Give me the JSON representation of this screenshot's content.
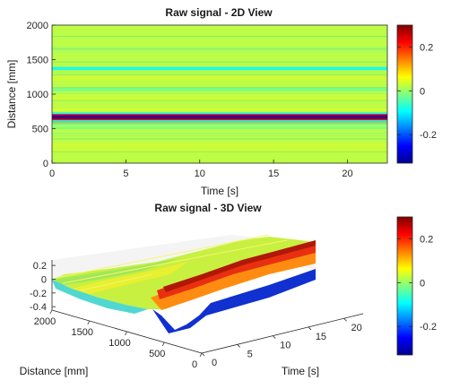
{
  "chart_data": [
    {
      "type": "heatmap",
      "title": "Raw signal - 2D View",
      "xlabel": "Time [s]",
      "ylabel": "Distance [mm]",
      "xlim": [
        0,
        22.7
      ],
      "ylim": [
        0,
        2000
      ],
      "xticks": [
        "0",
        "5",
        "10",
        "15",
        "20"
      ],
      "yticks": [
        "0",
        "500",
        "1000",
        "1500",
        "2000"
      ],
      "colorbar": {
        "range": [
          -0.33,
          0.3
        ],
        "ticks": [
          "0.2",
          "0",
          "-0.2"
        ],
        "colormap": "jet"
      },
      "profile": {
        "distance": [
          0,
          150,
          300,
          400,
          450,
          500,
          530,
          560,
          590,
          610,
          630,
          650,
          665,
          680,
          700,
          720,
          750,
          800,
          900,
          1000,
          1050,
          1100,
          1200,
          1300,
          1350,
          1400,
          1500,
          1600,
          1700,
          1800,
          1900,
          2000
        ],
        "value": [
          0.02,
          0.03,
          0.02,
          0.0,
          0.02,
          -0.02,
          0.02,
          -0.05,
          0.12,
          -0.1,
          0.24,
          -0.28,
          0.3,
          -0.25,
          0.2,
          -0.06,
          0.04,
          0.02,
          0.03,
          0.01,
          -0.02,
          0.02,
          0.03,
          0.01,
          -0.08,
          0.02,
          0.02,
          0.01,
          0.02,
          0.02,
          0.02,
          0.01
        ]
      }
    },
    {
      "type": "surface",
      "title": "Raw signal - 3D View",
      "xlabel": "Distance [mm]",
      "ylabel": "Time [s]",
      "zlim": [
        -0.45,
        0.28
      ],
      "xticks": [
        "2000",
        "1500",
        "1000",
        "500",
        "0"
      ],
      "yticks": [
        "0",
        "5",
        "10",
        "15",
        "20"
      ],
      "zticks": [
        "0.2",
        "0",
        "-0.2",
        "-0.4"
      ],
      "colorbar": {
        "range": [
          -0.33,
          0.3
        ],
        "ticks": [
          "0.2",
          "0",
          "-0.2"
        ],
        "colormap": "jet"
      }
    }
  ]
}
